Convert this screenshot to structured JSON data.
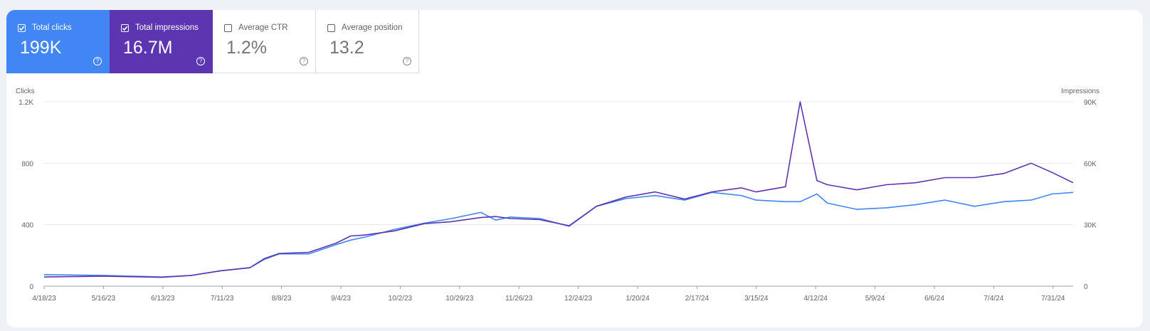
{
  "metrics": [
    {
      "label": "Total clicks",
      "value": "199K",
      "checked": true,
      "color": "#4285f4"
    },
    {
      "label": "Total impressions",
      "value": "16.7M",
      "checked": true,
      "color": "#5e35b1"
    },
    {
      "label": "Average CTR",
      "value": "1.2%",
      "checked": false
    },
    {
      "label": "Average position",
      "value": "13.2",
      "checked": false
    }
  ],
  "help_glyph": "?",
  "chart_data": {
    "type": "line",
    "left_axis": {
      "label": "Clicks",
      "ticks": [
        "0",
        "400",
        "800",
        "1.2K"
      ],
      "range": [
        0,
        1200
      ]
    },
    "right_axis": {
      "label": "Impressions",
      "ticks": [
        "0",
        "30K",
        "60K",
        "90K"
      ],
      "range": [
        0,
        90000
      ]
    },
    "x_tick_labels": [
      "4/18/23",
      "5/16/23",
      "6/13/23",
      "7/11/23",
      "8/8/23",
      "9/4/23",
      "10/2/23",
      "10/29/23",
      "11/26/23",
      "12/24/23",
      "1/20/24",
      "2/17/24",
      "3/15/24",
      "4/12/24",
      "5/9/24",
      "6/6/24",
      "7/4/24",
      "7/31/24"
    ],
    "x_range": [
      "2023-04-18",
      "2024-08-20"
    ],
    "grid": true,
    "series": [
      {
        "name": "Clicks",
        "axis": "left",
        "color": "#4285f4",
        "dates": [
          "2023-04-18",
          "2023-05-16",
          "2023-06-13",
          "2023-06-27",
          "2023-07-11",
          "2023-07-25",
          "2023-08-01",
          "2023-08-08",
          "2023-08-22",
          "2023-09-04",
          "2023-09-11",
          "2023-09-18",
          "2023-10-02",
          "2023-10-16",
          "2023-10-29",
          "2023-11-12",
          "2023-11-19",
          "2023-11-26",
          "2023-12-10",
          "2023-12-24",
          "2024-01-06",
          "2024-01-20",
          "2024-02-03",
          "2024-02-17",
          "2024-03-01",
          "2024-03-15",
          "2024-03-22",
          "2024-04-05",
          "2024-04-12",
          "2024-04-20",
          "2024-04-25",
          "2024-05-09",
          "2024-05-23",
          "2024-06-06",
          "2024-06-20",
          "2024-07-04",
          "2024-07-18",
          "2024-07-31",
          "2024-08-10",
          "2024-08-20"
        ],
        "values": [
          75,
          70,
          60,
          70,
          100,
          120,
          175,
          210,
          210,
          270,
          300,
          320,
          370,
          410,
          440,
          480,
          430,
          450,
          440,
          390,
          520,
          570,
          590,
          560,
          610,
          590,
          560,
          550,
          550,
          600,
          540,
          500,
          510,
          530,
          560,
          520,
          550,
          560,
          600,
          610
        ]
      },
      {
        "name": "Impressions",
        "axis": "right",
        "color": "#5e35b1",
        "dates": [
          "2023-04-18",
          "2023-05-16",
          "2023-06-13",
          "2023-06-27",
          "2023-07-11",
          "2023-07-25",
          "2023-08-01",
          "2023-08-08",
          "2023-08-22",
          "2023-09-04",
          "2023-09-11",
          "2023-09-18",
          "2023-10-02",
          "2023-10-16",
          "2023-10-29",
          "2023-11-12",
          "2023-11-19",
          "2023-11-26",
          "2023-12-10",
          "2023-12-24",
          "2024-01-06",
          "2024-01-20",
          "2024-02-03",
          "2024-02-17",
          "2024-03-01",
          "2024-03-15",
          "2024-03-22",
          "2024-04-05",
          "2024-04-12",
          "2024-04-20",
          "2024-04-25",
          "2024-05-09",
          "2024-05-23",
          "2024-06-06",
          "2024-06-20",
          "2024-07-04",
          "2024-07-18",
          "2024-07-31",
          "2024-08-10",
          "2024-08-20"
        ],
        "values": [
          4500,
          4900,
          4300,
          5200,
          7500,
          9000,
          13500,
          16000,
          16500,
          21000,
          24500,
          25000,
          27000,
          30500,
          31500,
          33500,
          34000,
          33000,
          32500,
          29500,
          39000,
          43500,
          46000,
          42500,
          46000,
          48000,
          46000,
          48500,
          90000,
          51500,
          49500,
          47000,
          49500,
          50500,
          53000,
          53000,
          55000,
          60000,
          55500,
          50500
        ]
      }
    ]
  }
}
